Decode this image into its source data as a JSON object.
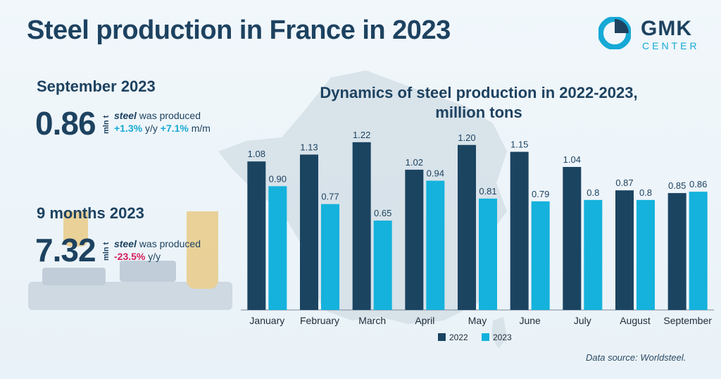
{
  "title": "Steel production in France in 2023",
  "logo": {
    "name": "GMK",
    "sub": "CENTER"
  },
  "stat1": {
    "heading": "September 2023",
    "value": "0.86",
    "unit": "mln t",
    "word": "steel",
    "rest": " was produced",
    "yy": "+1.3%",
    "yy_suffix": " y/y ",
    "mm": "+7.1%",
    "mm_suffix": " m/m"
  },
  "stat2": {
    "heading": "9 months 2023",
    "value": "7.32",
    "unit": "mln t",
    "word": "steel",
    "rest": " was produced",
    "yy": "-23.5%",
    "yy_suffix": " y/y"
  },
  "source": "Data source:  Worldsteel.",
  "colors": {
    "s2022": "#1b4461",
    "s2023": "#14b2dc",
    "title": "#1d4260"
  },
  "chart_data": {
    "type": "bar",
    "title": "Dynamics of steel production in 2022-2023,",
    "title_line2": "million tons",
    "categories": [
      "January",
      "February",
      "March",
      "April",
      "May",
      "June",
      "July",
      "August",
      "September"
    ],
    "series": [
      {
        "name": "2022",
        "values": [
          1.08,
          1.13,
          1.22,
          1.02,
          1.2,
          1.15,
          1.04,
          0.87,
          0.85
        ],
        "labels": [
          "1.08",
          "1.13",
          "1.22",
          "1.02",
          "1.20",
          "1.15",
          "1.04",
          "0.87",
          "0.85"
        ]
      },
      {
        "name": "2023",
        "values": [
          0.9,
          0.77,
          0.65,
          0.94,
          0.81,
          0.79,
          0.8,
          0.8,
          0.86
        ],
        "labels": [
          "0.90",
          "0.77",
          "0.65",
          "0.94",
          "0.81",
          "0.79",
          "0.8",
          "0.8",
          "0.86"
        ]
      }
    ],
    "ylim": [
      0,
      1.25
    ],
    "grid": false,
    "legend": "bottom-center"
  }
}
